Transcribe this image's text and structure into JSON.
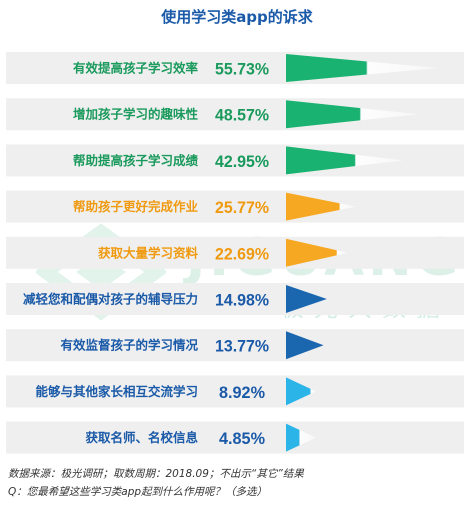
{
  "chart_data": {
    "type": "bar",
    "title": "使用学习类app的诉求",
    "categories": [
      "有效提高孩子学习效率",
      "增加孩子学习的趣味性",
      "帮助提高孩子学习成绩",
      "帮助孩子更好完成作业",
      "获取大量学习资料",
      "减轻您和配偶对孩子的辅导压力",
      "有效监督孩子的学习情况",
      "能够与其他家长相互交流学习",
      "获取名师、名校信息"
    ],
    "values": [
      55.73,
      48.57,
      42.95,
      25.77,
      22.69,
      14.98,
      13.77,
      8.92,
      4.85
    ],
    "value_labels": [
      "55.73%",
      "48.57%",
      "42.95%",
      "25.77%",
      "22.69%",
      "14.98%",
      "13.77%",
      "8.92%",
      "4.85%"
    ],
    "bar_colors": [
      "#1ab270",
      "#1ab270",
      "#1ab270",
      "#f7a823",
      "#f7a823",
      "#1a67b0",
      "#1a67b0",
      "#2bb4e8",
      "#2bb4e8"
    ],
    "label_colors": [
      "#1a9a5c",
      "#1a9a5c",
      "#1a9a5c",
      "#f09a10",
      "#f09a10",
      "#1a5aa8",
      "#1a5aa8",
      "#1a5aa8",
      "#1a5aa8"
    ],
    "xlim": [
      0,
      100
    ]
  },
  "watermark": {
    "brand": "JIGUANG",
    "brand_cn": "极光大数据",
    "color": "#1aa36a"
  },
  "footer": {
    "source": "数据来源：极光调研；取数周期：2018.09；不出示“其它”结果",
    "question": "Q：您最希望这些学习类app起到什么作用呢？（多选）"
  }
}
